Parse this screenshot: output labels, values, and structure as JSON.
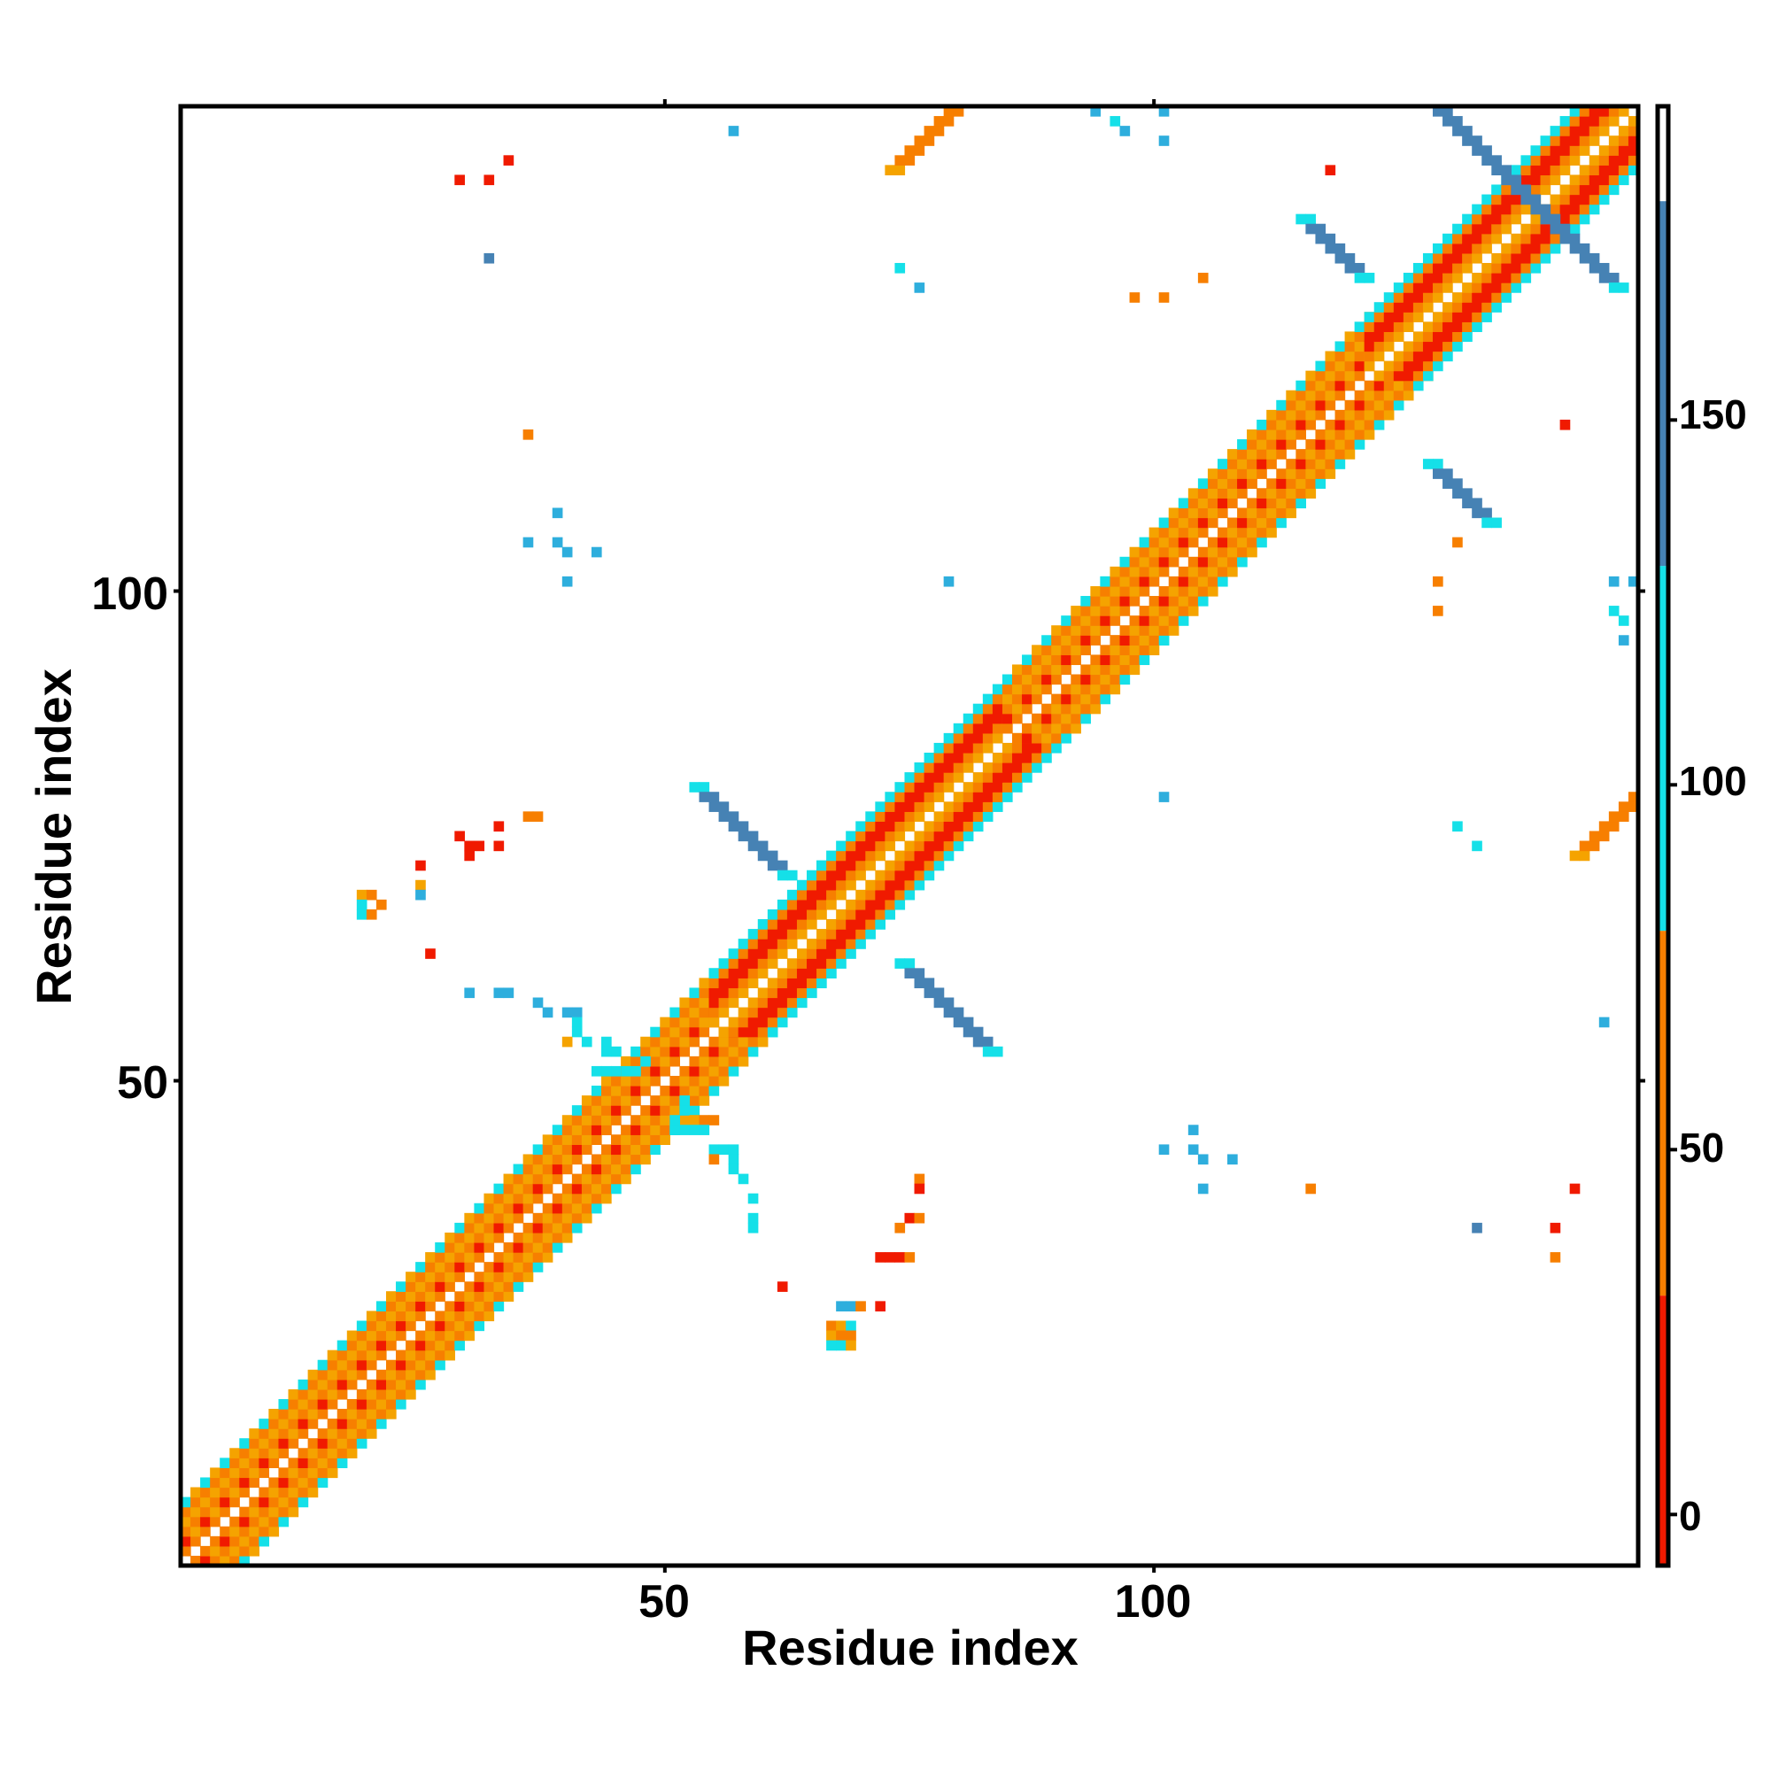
{
  "chart_data": {
    "type": "heatmap",
    "title": "",
    "xlabel": "Residue index",
    "ylabel": "Residue index",
    "xlim": [
      0.5,
      149.5
    ],
    "ylim": [
      0.5,
      149.5
    ],
    "x_ticks": [
      50,
      100
    ],
    "x_tick_labels": [
      "50",
      "100"
    ],
    "y_ticks": [
      50,
      100
    ],
    "y_tick_labels": [
      "50",
      "100"
    ],
    "grid": false,
    "legend": "colorbar-right",
    "colorbar": {
      "ticks": [
        0,
        50,
        100,
        150
      ],
      "tick_labels": [
        "0",
        "50",
        "100",
        "150"
      ],
      "range": [
        -7,
        193
      ],
      "bands": [
        {
          "from": -7,
          "to": 30,
          "color": "#f01a00"
        },
        {
          "from": 30,
          "to": 80,
          "color": "#f77f00"
        },
        {
          "from": 80,
          "to": 130,
          "color": "#15e0e8"
        },
        {
          "from": 130,
          "to": 180,
          "color": "#4682b4"
        },
        {
          "from": 180,
          "to": 193,
          "color": "#ffffff"
        }
      ]
    },
    "colors": {
      "red": "#f01a00",
      "orange": "#f77f00",
      "amber": "#f5a300",
      "cyan": "#15e0e8",
      "skyblue": "#2eaedd",
      "steelblue": "#4682b4"
    },
    "diagonal_segments": [
      {
        "x": [
          1,
          10
        ],
        "pattern": "beta"
      },
      {
        "x": [
          10,
          22
        ],
        "pattern": "beta"
      },
      {
        "x": [
          22,
          44
        ],
        "pattern": "beta"
      },
      {
        "x": [
          44,
          55
        ],
        "pattern": "beta"
      },
      {
        "x": [
          55,
          66
        ],
        "pattern": "alpha"
      },
      {
        "x": [
          66,
          76
        ],
        "pattern": "alpha"
      },
      {
        "x": [
          76,
          85
        ],
        "pattern": "alpha"
      },
      {
        "x": [
          85,
          95
        ],
        "pattern": "beta"
      },
      {
        "x": [
          95,
          110
        ],
        "pattern": "beta"
      },
      {
        "x": [
          110,
          122
        ],
        "pattern": "beta"
      },
      {
        "x": [
          122,
          135
        ],
        "pattern": "alpha"
      },
      {
        "x": [
          135,
          149
        ],
        "pattern": "alpha"
      }
    ],
    "bands": [
      {
        "start": [
          53,
          80
        ],
        "length": 10,
        "direction": "anti",
        "color": "steelblue",
        "width": 2
      },
      {
        "start": [
          74,
          62
        ],
        "length": 10,
        "direction": "anti",
        "color": "steelblue",
        "width": 2
      },
      {
        "start": [
          128,
          150
        ],
        "length": 20,
        "direction": "anti",
        "color": "steelblue",
        "width": 2
      },
      {
        "start": [
          115,
          138
        ],
        "length": 7,
        "direction": "anti",
        "color": "steelblue",
        "width": 2
      },
      {
        "start": [
          128,
          113
        ],
        "length": 7,
        "direction": "anti",
        "color": "steelblue",
        "width": 2
      },
      {
        "start": [
          73,
          143
        ],
        "length": 9,
        "direction": "parallel",
        "color": "orange",
        "width": 2
      },
      {
        "start": [
          143,
          73
        ],
        "length": 8,
        "direction": "parallel",
        "color": "orange",
        "width": 2
      }
    ],
    "points": [
      {
        "x": 57,
        "y": 147,
        "c": "skyblue"
      },
      {
        "x": 94,
        "y": 149,
        "c": "skyblue"
      },
      {
        "x": 96,
        "y": 148,
        "c": "cyan"
      },
      {
        "x": 97,
        "y": 147,
        "c": "skyblue"
      },
      {
        "x": 101,
        "y": 149,
        "c": "skyblue"
      },
      {
        "x": 101,
        "y": 146,
        "c": "skyblue"
      },
      {
        "x": 34,
        "y": 144,
        "c": "red"
      },
      {
        "x": 29,
        "y": 142,
        "c": "red"
      },
      {
        "x": 32,
        "y": 142,
        "c": "red"
      },
      {
        "x": 118,
        "y": 143,
        "c": "red"
      },
      {
        "x": 32,
        "y": 134,
        "c": "steelblue"
      },
      {
        "x": 74,
        "y": 133,
        "c": "cyan"
      },
      {
        "x": 76,
        "y": 131,
        "c": "skyblue"
      },
      {
        "x": 98,
        "y": 130,
        "c": "orange"
      },
      {
        "x": 101,
        "y": 130,
        "c": "orange"
      },
      {
        "x": 105,
        "y": 132,
        "c": "orange"
      },
      {
        "x": 36,
        "y": 116,
        "c": "orange"
      },
      {
        "x": 142,
        "y": 117,
        "c": "red"
      },
      {
        "x": 39,
        "y": 108,
        "c": "skyblue"
      },
      {
        "x": 36,
        "y": 105,
        "c": "skyblue"
      },
      {
        "x": 39,
        "y": 105,
        "c": "skyblue"
      },
      {
        "x": 40,
        "y": 104,
        "c": "skyblue"
      },
      {
        "x": 43,
        "y": 104,
        "c": "skyblue"
      },
      {
        "x": 40,
        "y": 101,
        "c": "skyblue"
      },
      {
        "x": 79,
        "y": 101,
        "c": "skyblue"
      },
      {
        "x": 131,
        "y": 105,
        "c": "orange"
      },
      {
        "x": 129,
        "y": 101,
        "c": "orange"
      },
      {
        "x": 129,
        "y": 98,
        "c": "orange"
      },
      {
        "x": 147,
        "y": 101,
        "c": "skyblue"
      },
      {
        "x": 149,
        "y": 101,
        "c": "skyblue"
      },
      {
        "x": 147,
        "y": 98,
        "c": "cyan"
      },
      {
        "x": 148,
        "y": 97,
        "c": "cyan"
      },
      {
        "x": 148,
        "y": 95,
        "c": "skyblue"
      },
      {
        "x": 101,
        "y": 79,
        "c": "skyblue"
      },
      {
        "x": 131,
        "y": 76,
        "c": "cyan"
      },
      {
        "x": 133,
        "y": 74,
        "c": "cyan"
      },
      {
        "x": 29,
        "y": 75,
        "c": "red"
      },
      {
        "x": 30,
        "y": 74,
        "c": "red"
      },
      {
        "x": 30,
        "y": 73,
        "c": "red"
      },
      {
        "x": 31,
        "y": 74,
        "c": "red"
      },
      {
        "x": 33,
        "y": 74,
        "c": "red"
      },
      {
        "x": 33,
        "y": 76,
        "c": "red"
      },
      {
        "x": 36,
        "y": 77,
        "c": "orange"
      },
      {
        "x": 37,
        "y": 77,
        "c": "orange"
      },
      {
        "x": 25,
        "y": 72,
        "c": "red"
      },
      {
        "x": 25,
        "y": 70,
        "c": "amber"
      },
      {
        "x": 25,
        "y": 69,
        "c": "skyblue"
      },
      {
        "x": 19,
        "y": 69,
        "c": "amber"
      },
      {
        "x": 20,
        "y": 69,
        "c": "orange"
      },
      {
        "x": 19,
        "y": 68,
        "c": "cyan"
      },
      {
        "x": 21,
        "y": 68,
        "c": "orange"
      },
      {
        "x": 19,
        "y": 67,
        "c": "cyan"
      },
      {
        "x": 20,
        "y": 67,
        "c": "orange"
      },
      {
        "x": 26,
        "y": 63,
        "c": "red"
      },
      {
        "x": 30,
        "y": 59,
        "c": "skyblue"
      },
      {
        "x": 33,
        "y": 59,
        "c": "skyblue"
      },
      {
        "x": 34,
        "y": 59,
        "c": "skyblue"
      },
      {
        "x": 37,
        "y": 58,
        "c": "skyblue"
      },
      {
        "x": 38,
        "y": 57,
        "c": "skyblue"
      },
      {
        "x": 40,
        "y": 57,
        "c": "skyblue"
      },
      {
        "x": 41,
        "y": 57,
        "c": "skyblue"
      },
      {
        "x": 41,
        "y": 56,
        "c": "cyan"
      },
      {
        "x": 41,
        "y": 55,
        "c": "cyan"
      },
      {
        "x": 40,
        "y": 54,
        "c": "amber"
      },
      {
        "x": 42,
        "y": 54,
        "c": "cyan"
      },
      {
        "x": 44,
        "y": 54,
        "c": "cyan"
      },
      {
        "x": 44,
        "y": 53,
        "c": "cyan"
      },
      {
        "x": 45,
        "y": 53,
        "c": "cyan"
      },
      {
        "x": 43,
        "y": 51,
        "c": "cyan"
      },
      {
        "x": 44,
        "y": 51,
        "c": "cyan"
      },
      {
        "x": 46,
        "y": 51,
        "c": "cyan"
      },
      {
        "x": 47,
        "y": 51,
        "c": "cyan"
      },
      {
        "x": 48,
        "y": 52,
        "c": "cyan"
      },
      {
        "x": 52,
        "y": 48,
        "c": "cyan"
      },
      {
        "x": 52,
        "y": 47,
        "c": "cyan"
      },
      {
        "x": 51,
        "y": 46,
        "c": "cyan"
      },
      {
        "x": 51,
        "y": 45,
        "c": "cyan"
      },
      {
        "x": 52,
        "y": 45,
        "c": "cyan"
      },
      {
        "x": 53,
        "y": 46,
        "c": "amber"
      },
      {
        "x": 54,
        "y": 46,
        "c": "orange"
      },
      {
        "x": 55,
        "y": 46,
        "c": "orange"
      },
      {
        "x": 53,
        "y": 45,
        "c": "cyan"
      },
      {
        "x": 54,
        "y": 45,
        "c": "cyan"
      },
      {
        "x": 55,
        "y": 43,
        "c": "cyan"
      },
      {
        "x": 56,
        "y": 43,
        "c": "cyan"
      },
      {
        "x": 57,
        "y": 43,
        "c": "cyan"
      },
      {
        "x": 57,
        "y": 42,
        "c": "cyan"
      },
      {
        "x": 55,
        "y": 42,
        "c": "orange"
      },
      {
        "x": 57,
        "y": 41,
        "c": "cyan"
      },
      {
        "x": 58,
        "y": 40,
        "c": "cyan"
      },
      {
        "x": 59,
        "y": 38,
        "c": "cyan"
      },
      {
        "x": 59,
        "y": 36,
        "c": "cyan"
      },
      {
        "x": 59,
        "y": 35,
        "c": "cyan"
      },
      {
        "x": 62,
        "y": 29,
        "c": "red"
      },
      {
        "x": 68,
        "y": 27,
        "c": "skyblue"
      },
      {
        "x": 69,
        "y": 27,
        "c": "skyblue"
      },
      {
        "x": 70,
        "y": 27,
        "c": "orange"
      },
      {
        "x": 72,
        "y": 27,
        "c": "red"
      },
      {
        "x": 67,
        "y": 25,
        "c": "orange"
      },
      {
        "x": 68,
        "y": 25,
        "c": "amber"
      },
      {
        "x": 69,
        "y": 25,
        "c": "cyan"
      },
      {
        "x": 67,
        "y": 24,
        "c": "amber"
      },
      {
        "x": 68,
        "y": 24,
        "c": "orange"
      },
      {
        "x": 69,
        "y": 24,
        "c": "orange"
      },
      {
        "x": 67,
        "y": 23,
        "c": "cyan"
      },
      {
        "x": 68,
        "y": 23,
        "c": "cyan"
      },
      {
        "x": 69,
        "y": 23,
        "c": "amber"
      },
      {
        "x": 76,
        "y": 40,
        "c": "orange"
      },
      {
        "x": 76,
        "y": 39,
        "c": "red"
      },
      {
        "x": 75,
        "y": 36,
        "c": "red"
      },
      {
        "x": 76,
        "y": 36,
        "c": "orange"
      },
      {
        "x": 74,
        "y": 35,
        "c": "orange"
      },
      {
        "x": 72,
        "y": 32,
        "c": "red"
      },
      {
        "x": 73,
        "y": 32,
        "c": "red"
      },
      {
        "x": 74,
        "y": 32,
        "c": "red"
      },
      {
        "x": 75,
        "y": 32,
        "c": "orange"
      },
      {
        "x": 101,
        "y": 43,
        "c": "skyblue"
      },
      {
        "x": 104,
        "y": 45,
        "c": "skyblue"
      },
      {
        "x": 104,
        "y": 43,
        "c": "skyblue"
      },
      {
        "x": 105,
        "y": 42,
        "c": "skyblue"
      },
      {
        "x": 108,
        "y": 42,
        "c": "skyblue"
      },
      {
        "x": 105,
        "y": 39,
        "c": "skyblue"
      },
      {
        "x": 116,
        "y": 39,
        "c": "orange"
      },
      {
        "x": 133,
        "y": 35,
        "c": "steelblue"
      },
      {
        "x": 143,
        "y": 39,
        "c": "red"
      },
      {
        "x": 141,
        "y": 35,
        "c": "red"
      },
      {
        "x": 141,
        "y": 32,
        "c": "orange"
      },
      {
        "x": 146,
        "y": 56,
        "c": "skyblue"
      }
    ]
  }
}
